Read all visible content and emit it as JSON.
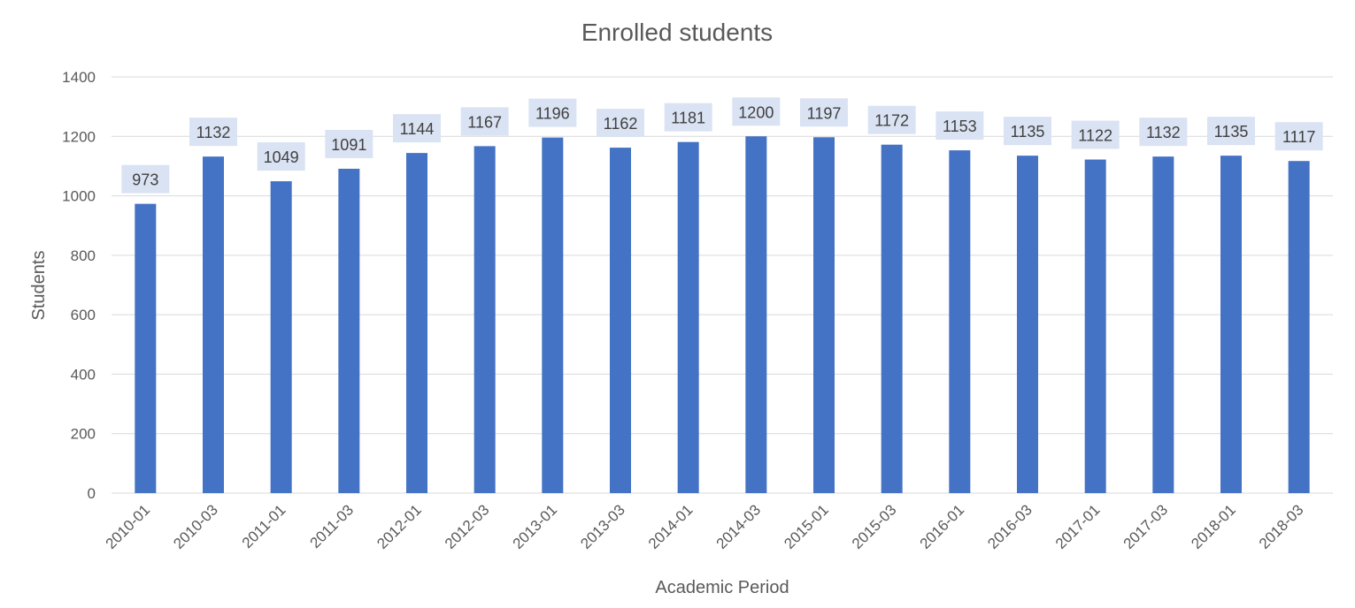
{
  "chart_data": {
    "type": "bar",
    "title": "Enrolled students",
    "xlabel": "Academic Period",
    "ylabel": "Students",
    "ylim": [
      0,
      1400
    ],
    "yticks": [
      0,
      200,
      400,
      600,
      800,
      1000,
      1200,
      1400
    ],
    "grid": true,
    "legend": "none",
    "categories": [
      "2010-01",
      "2010-03",
      "2011-01",
      "2011-03",
      "2012-01",
      "2012-03",
      "2013-01",
      "2013-03",
      "2014-01",
      "2014-03",
      "2015-01",
      "2015-03",
      "2016-01",
      "2016-03",
      "2017-01",
      "2017-03",
      "2018-01",
      "2018-03"
    ],
    "values": [
      973,
      1132,
      1049,
      1091,
      1144,
      1167,
      1196,
      1162,
      1181,
      1200,
      1197,
      1172,
      1153,
      1135,
      1122,
      1132,
      1135,
      1117
    ],
    "colors": {
      "bar": "#4472c4",
      "label_bg": "#dae3f3",
      "grid": "#d9d9d9",
      "text": "#595959"
    }
  }
}
